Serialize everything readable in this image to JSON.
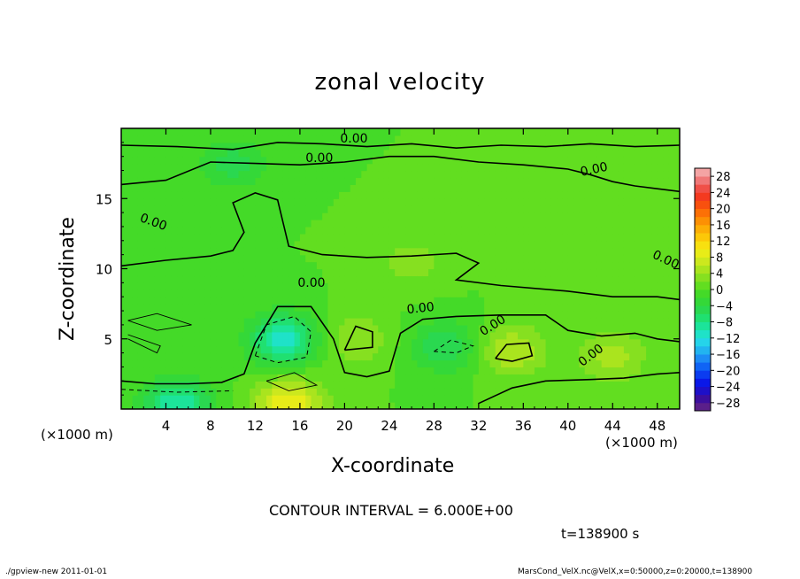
{
  "chart_data": {
    "type": "heatmap",
    "title": "zonal velocity",
    "xlabel": "X-coordinate",
    "ylabel": "Z-coordinate",
    "x_unit_left": "(×1000 m)",
    "x_unit_right": "(×1000 m)",
    "xlim": [
      0,
      50
    ],
    "ylim": [
      0,
      20
    ],
    "xticks": [
      4,
      8,
      12,
      16,
      20,
      24,
      28,
      32,
      36,
      40,
      44,
      48
    ],
    "yticks": [
      5,
      10,
      15
    ],
    "colorbar": {
      "levels": [
        -30,
        -28,
        -26,
        -24,
        -22,
        -20,
        -18,
        -16,
        -14,
        -12,
        -10,
        -8,
        -6,
        -4,
        -2,
        0,
        2,
        4,
        6,
        8,
        10,
        12,
        14,
        16,
        18,
        20,
        22,
        24,
        26,
        28,
        30
      ],
      "tick_labels": [
        "28",
        "24",
        "20",
        "16",
        "12",
        "8",
        "4",
        "0",
        "−4",
        "−8",
        "−12",
        "−16",
        "−20",
        "−24",
        "−28"
      ],
      "colors": [
        "#5a1f8a",
        "#3c0f9e",
        "#1e10c8",
        "#0a18e8",
        "#0b3cf0",
        "#1064f5",
        "#1d8cf5",
        "#22b4f0",
        "#25d4ea",
        "#1fe2c8",
        "#1ce49a",
        "#20e070",
        "#2ad850",
        "#34d838",
        "#44da28",
        "#62de20",
        "#86e020",
        "#aae41e",
        "#cce81e",
        "#e8ec18",
        "#f8e010",
        "#fcc808",
        "#fcae06",
        "#fc9004",
        "#fc7006",
        "#f8500e",
        "#f43a20",
        "#f05048",
        "#f07878",
        "#f4a4a4"
      ]
    },
    "contour_interval_text": "CONTOUR INTERVAL = 6.000E+00",
    "contour_labels": [
      "0.00",
      "0.00",
      "0.00",
      "0.00",
      "0.00",
      "0.00",
      "0.00",
      "0.00",
      "0.00"
    ],
    "field_features": [
      {
        "x": 14.5,
        "z": 5.0,
        "value": -11
      },
      {
        "x": 15.0,
        "z": 0.4,
        "value": 10
      },
      {
        "x": 5.0,
        "z": 0.4,
        "value": -10
      },
      {
        "x": 21.0,
        "z": 5.0,
        "value": 4
      },
      {
        "x": 35.0,
        "z": 4.2,
        "value": 6
      },
      {
        "x": 44.0,
        "z": 3.8,
        "value": 5
      },
      {
        "x": 29.0,
        "z": 4.5,
        "value": -6
      },
      {
        "x": 10.0,
        "z": 17.5,
        "value": -5
      },
      {
        "x": 26.0,
        "z": 10.5,
        "value": 3
      }
    ],
    "time_label": "t=138900 s"
  },
  "footer": {
    "left": "./gpview-new   2011-01-01",
    "right": "MarsCond_VelX.nc@VelX,x=0:50000,z=0:20000,t=138900"
  }
}
